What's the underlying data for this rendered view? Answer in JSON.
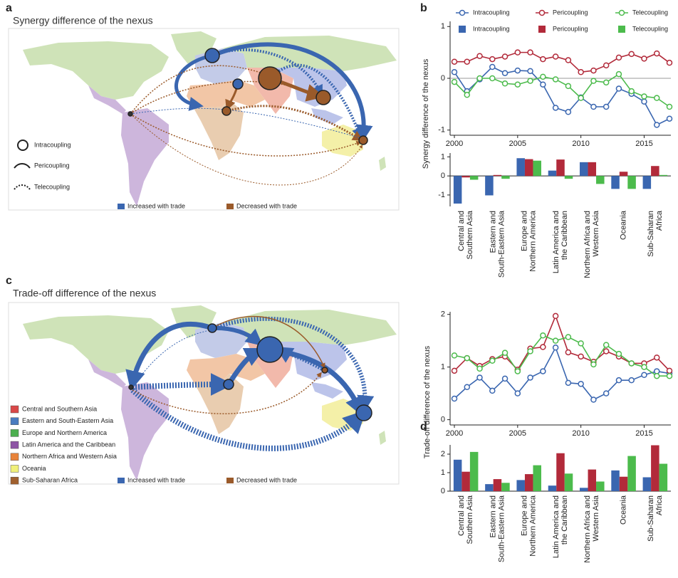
{
  "panels": {
    "a": {
      "letter": "a",
      "title": "Synergy difference of the nexus",
      "legend": [
        "Intracoupling",
        "Pericoupling",
        "Telecoupling"
      ],
      "trade_legend": [
        {
          "label": "Increased with trade",
          "color": "#3a66b0"
        },
        {
          "label": "Decreased with trade",
          "color": "#9a5a2a"
        }
      ]
    },
    "c": {
      "letter": "c",
      "title": "Trade-off difference of the nexus",
      "regions": [
        {
          "label": "Central and Southern Asia",
          "color": "#d94848"
        },
        {
          "label": "Eastern and South-Eastern Asia",
          "color": "#4a7cc0"
        },
        {
          "label": "Europe and Northern America",
          "color": "#4caf50"
        },
        {
          "label": "Latin America and the Caribbean",
          "color": "#8e55a5"
        },
        {
          "label": "Northern Africa and Western Asia",
          "color": "#e8833a"
        },
        {
          "label": "Oceania",
          "color": "#f0f07a"
        },
        {
          "label": "Sub-Saharan Africa",
          "color": "#a0602e"
        }
      ],
      "trade_legend": [
        {
          "label": "Increased with trade",
          "color": "#3a66b0"
        },
        {
          "label": "Decreased with trade",
          "color": "#9a5a2a"
        }
      ]
    }
  },
  "chart_data": [
    {
      "type": "line",
      "letter": "b",
      "ylabel": "Synergy difference of the nexus",
      "legend": "top",
      "zero_line": true,
      "x": [
        2000,
        2001,
        2002,
        2003,
        2004,
        2005,
        2006,
        2007,
        2008,
        2009,
        2010,
        2011,
        2012,
        2013,
        2014,
        2015,
        2016,
        2017
      ],
      "xlim": [
        2000,
        2017
      ],
      "xticks": [
        2000,
        2005,
        2010,
        2015
      ],
      "ylim": [
        -1.1,
        1.1
      ],
      "yticks": [
        -1,
        0,
        1
      ],
      "series": [
        {
          "name": "Intracoupling",
          "color": "#3a66b0",
          "values": [
            0.12,
            -0.25,
            -0.02,
            0.22,
            0.1,
            0.15,
            0.14,
            -0.12,
            -0.57,
            -0.65,
            -0.37,
            -0.55,
            -0.55,
            -0.2,
            -0.3,
            -0.45,
            -0.9,
            -0.78
          ]
        },
        {
          "name": "Pericoupling",
          "color": "#b22a3a",
          "values": [
            0.32,
            0.32,
            0.43,
            0.37,
            0.42,
            0.5,
            0.5,
            0.37,
            0.42,
            0.35,
            0.12,
            0.15,
            0.25,
            0.4,
            0.47,
            0.38,
            0.48,
            0.3
          ]
        },
        {
          "name": "Telecoupling",
          "color": "#4cbb4c",
          "values": [
            -0.07,
            -0.32,
            0,
            0,
            -0.1,
            -0.12,
            -0.05,
            0.03,
            -0.02,
            -0.15,
            -0.38,
            -0.05,
            -0.08,
            0.08,
            -0.25,
            -0.35,
            -0.38,
            -0.55
          ]
        }
      ]
    },
    {
      "type": "bar",
      "legend": "top",
      "zero_line": true,
      "categories": [
        [
          "Central and",
          "Southern Asia"
        ],
        [
          "Eastern and",
          "South-Eastern Asia"
        ],
        [
          "Europe and",
          "Northern America"
        ],
        [
          "Latin America and",
          "the Caribbean"
        ],
        [
          "Northern Africa and",
          "Western Asia"
        ],
        [
          "Oceania"
        ],
        [
          "Sub-Saharan",
          "Africa"
        ]
      ],
      "ylim": [
        -1.6,
        1.2
      ],
      "yticks": [
        -1,
        0,
        1
      ],
      "series": [
        {
          "name": "Intracoupling",
          "color": "#3a66b0",
          "values": [
            -1.45,
            -1.02,
            0.93,
            0.28,
            0.72,
            -0.68,
            -0.68
          ]
        },
        {
          "name": "Pericoupling",
          "color": "#b22a3a",
          "values": [
            -0.08,
            0.05,
            0.88,
            0.86,
            0.72,
            0.22,
            0.52
          ]
        },
        {
          "name": "Telecoupling",
          "color": "#4cbb4c",
          "values": [
            -0.2,
            -0.15,
            0.8,
            -0.15,
            -0.42,
            -0.68,
            0.05
          ]
        }
      ]
    },
    {
      "type": "line",
      "letter": "d",
      "ylabel": "Trade-off difference of the nexus",
      "x": [
        2000,
        2001,
        2002,
        2003,
        2004,
        2005,
        2006,
        2007,
        2008,
        2009,
        2010,
        2011,
        2012,
        2013,
        2014,
        2015,
        2016,
        2017
      ],
      "xlim": [
        2000,
        2017
      ],
      "xticks": [
        2000,
        2005,
        2010,
        2015
      ],
      "ylim": [
        -0.1,
        2.05
      ],
      "yticks": [
        0,
        1,
        2
      ],
      "series": [
        {
          "name": "Intracoupling",
          "color": "#3a66b0",
          "values": [
            0.4,
            0.62,
            0.8,
            0.55,
            0.78,
            0.5,
            0.8,
            0.92,
            1.37,
            0.7,
            0.68,
            0.38,
            0.5,
            0.75,
            0.75,
            0.85,
            0.92,
            0.88
          ]
        },
        {
          "name": "Pericoupling",
          "color": "#b22a3a",
          "values": [
            0.93,
            1.17,
            1.02,
            1.15,
            1.2,
            0.95,
            1.35,
            1.38,
            1.97,
            1.28,
            1.2,
            1.1,
            1.3,
            1.2,
            1.07,
            1.07,
            1.18,
            0.93
          ]
        },
        {
          "name": "Telecoupling",
          "color": "#4cbb4c",
          "values": [
            1.22,
            1.17,
            0.97,
            1.12,
            1.27,
            0.92,
            1.3,
            1.6,
            1.5,
            1.57,
            1.45,
            1.05,
            1.42,
            1.25,
            1.07,
            1.0,
            0.83,
            0.83
          ]
        }
      ]
    },
    {
      "type": "bar",
      "zero_line": true,
      "categories": [
        [
          "Central and",
          "Southern Asia"
        ],
        [
          "Eastern and",
          "South-Eastern Asia"
        ],
        [
          "Europe and",
          "Northern America"
        ],
        [
          "Latin America and",
          "the Caribbean"
        ],
        [
          "Northern Africa and",
          "Western Asia"
        ],
        [
          "Oceania"
        ],
        [
          "Sub-Saharan",
          "Africa"
        ]
      ],
      "ylim": [
        0,
        2.5
      ],
      "yticks": [
        0,
        1,
        2
      ],
      "series": [
        {
          "name": "Intracoupling",
          "color": "#3a66b0",
          "values": [
            1.7,
            0.38,
            0.6,
            0.3,
            0.18,
            1.12,
            0.75
          ]
        },
        {
          "name": "Pericoupling",
          "color": "#b22a3a",
          "values": [
            1.05,
            0.65,
            0.92,
            2.05,
            1.17,
            0.78,
            2.48
          ]
        },
        {
          "name": "Telecoupling",
          "color": "#4cbb4c",
          "values": [
            2.12,
            0.45,
            1.4,
            0.95,
            0.52,
            1.9,
            1.48
          ]
        }
      ]
    }
  ]
}
